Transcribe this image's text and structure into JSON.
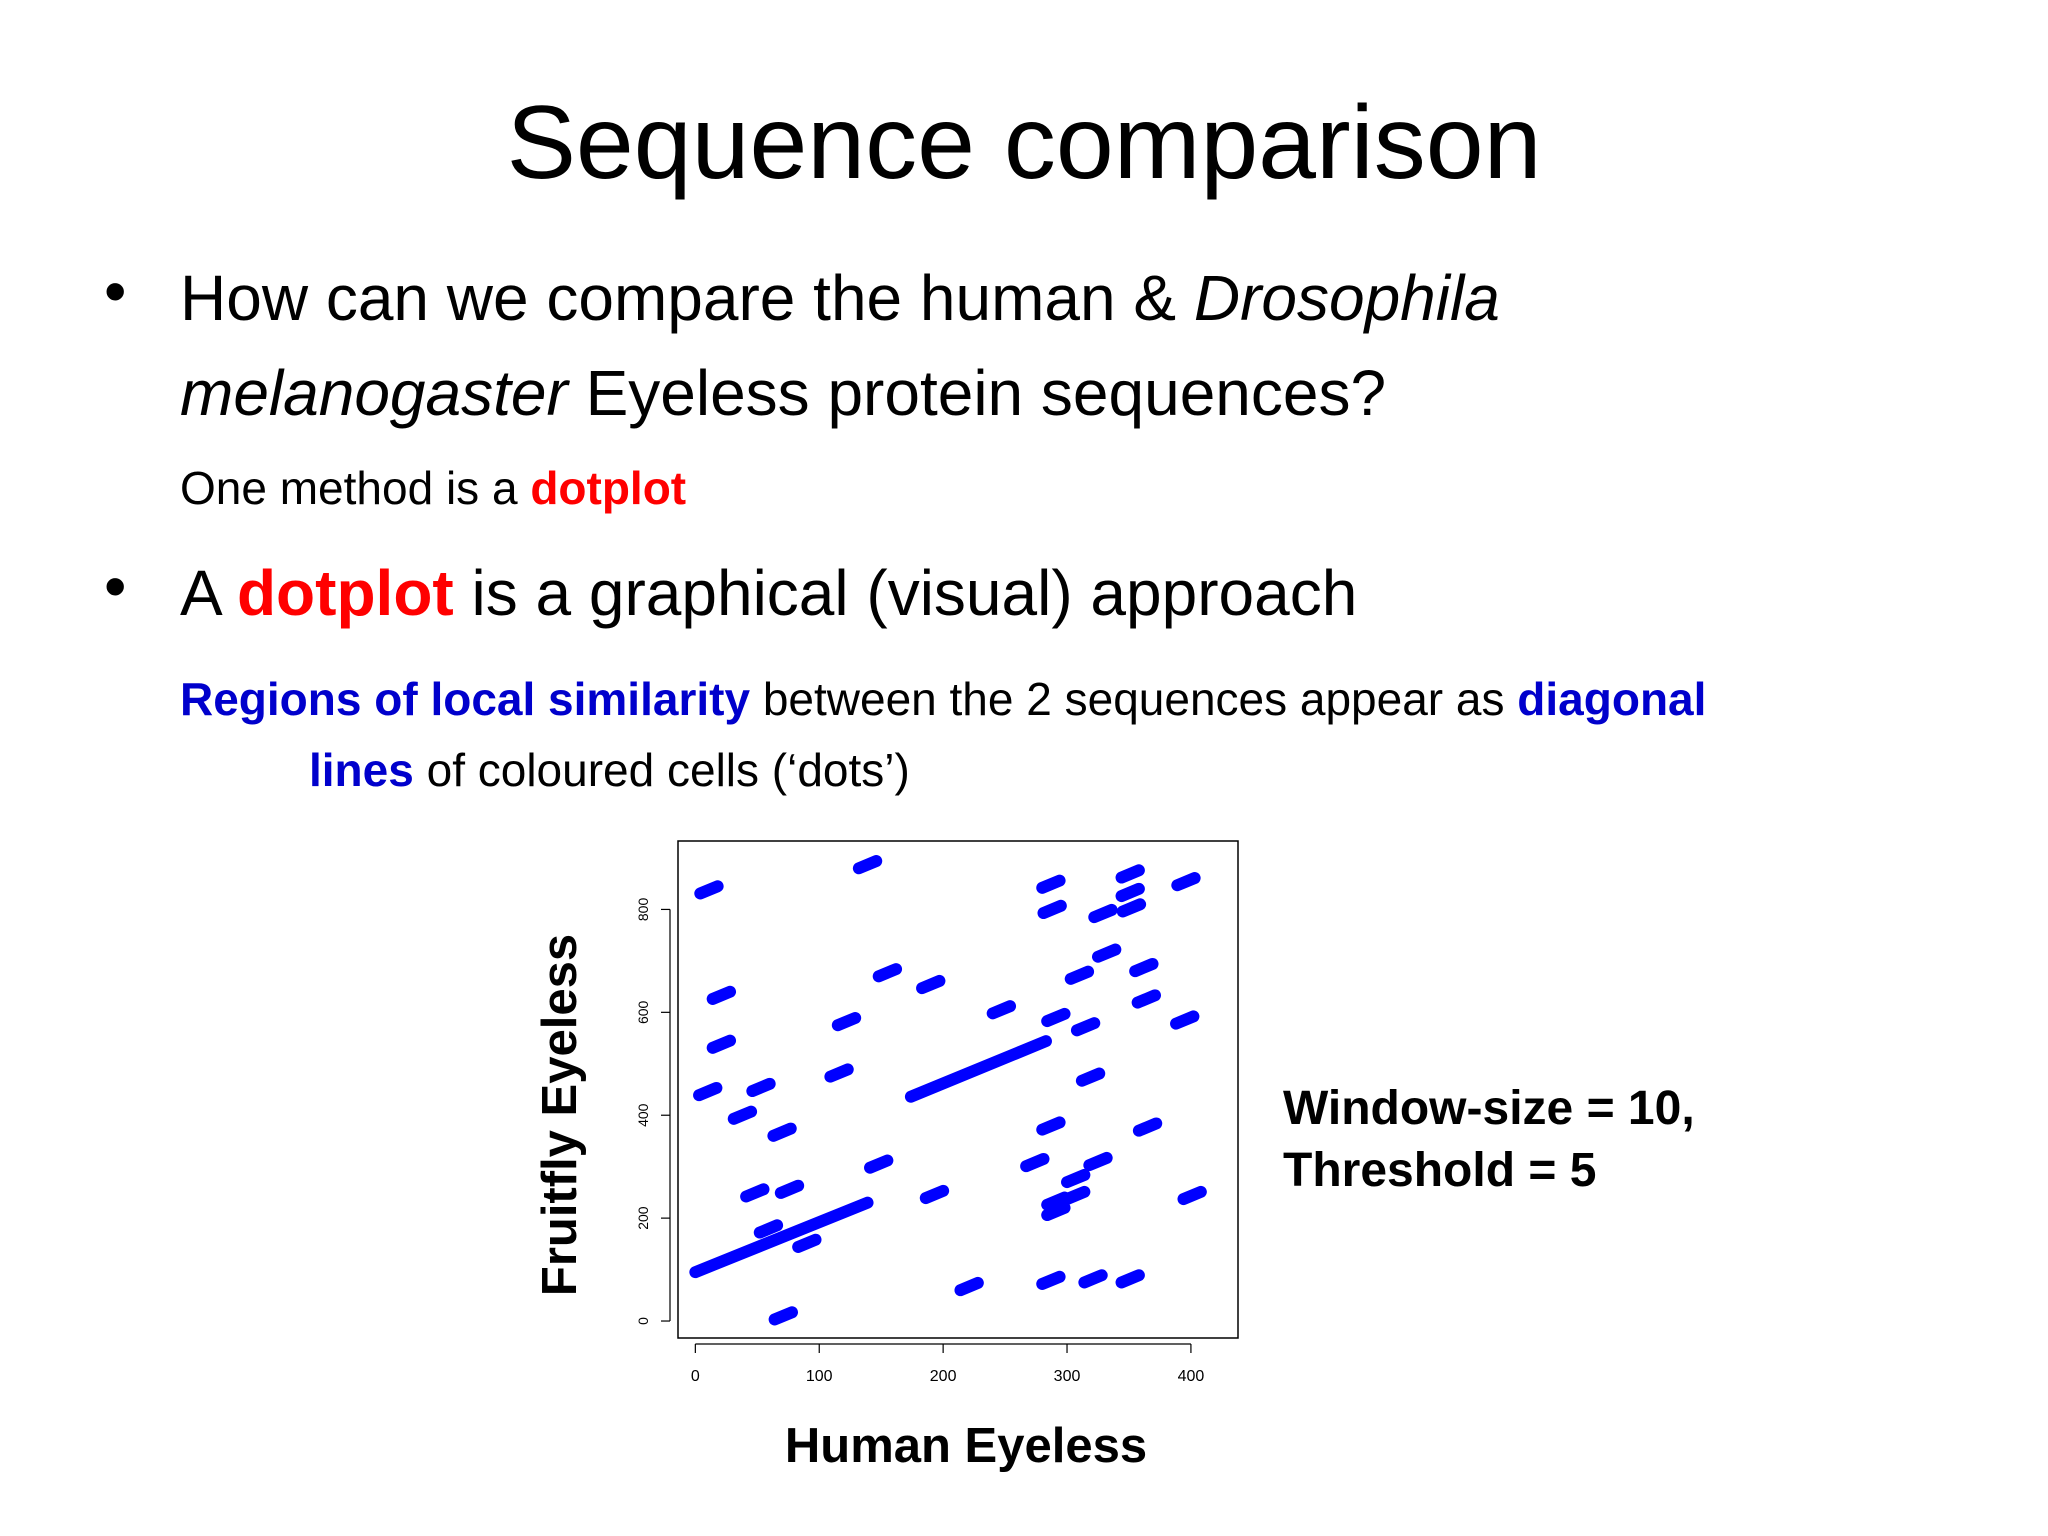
{
  "slide": {
    "title": "Sequence comparison",
    "bullet1": {
      "lines": [
        [
          "How can we compare the human & ",
          "Drosophila"
        ],
        [
          "melanogaster",
          " Eyeless protein sequences?"
        ]
      ]
    },
    "sub1": [
      "One method is a ",
      "dotplot"
    ],
    "bullet2": [
      "A ",
      "dotplot",
      " is a graphical (visual) approach"
    ],
    "sub2": {
      "lines": [
        [
          "Regions of local similarity",
          " between the 2 sequences appear as ",
          "diagonal"
        ],
        [
          "lines",
          " of coloured cells (‘dots’)"
        ]
      ]
    }
  },
  "chart_data": {
    "type": "dotplot",
    "xlabel": "Human Eyeless",
    "ylabel": "Fruitfly Eyeless",
    "annotation": [
      "Window-size = 10,",
      "Threshold = 5"
    ],
    "color": "#0000ff",
    "xlim": [
      -14,
      438
    ],
    "ylim": [
      -33,
      933
    ],
    "xticks": [
      0,
      100,
      200,
      300,
      400
    ],
    "yticks": [
      0,
      200,
      400,
      600,
      800
    ],
    "segments": [
      {
        "x": [
          0,
          139
        ],
        "y": [
          95,
          230
        ]
      },
      {
        "x": [
          174,
          283
        ],
        "y": [
          436,
          544
        ]
      },
      {
        "x": [
          4,
          18
        ],
        "y": [
          831,
          845
        ]
      },
      {
        "x": [
          132,
          146
        ],
        "y": [
          880,
          894
        ]
      },
      {
        "x": [
          14,
          28
        ],
        "y": [
          626,
          640
        ]
      },
      {
        "x": [
          14,
          28
        ],
        "y": [
          531,
          545
        ]
      },
      {
        "x": [
          3,
          17
        ],
        "y": [
          439,
          453
        ]
      },
      {
        "x": [
          46,
          60
        ],
        "y": [
          447,
          461
        ]
      },
      {
        "x": [
          31,
          45
        ],
        "y": [
          393,
          407
        ]
      },
      {
        "x": [
          63,
          77
        ],
        "y": [
          360,
          374
        ]
      },
      {
        "x": [
          69,
          83
        ],
        "y": [
          249,
          263
        ]
      },
      {
        "x": [
          41,
          55
        ],
        "y": [
          242,
          256
        ]
      },
      {
        "x": [
          52,
          66
        ],
        "y": [
          172,
          186
        ]
      },
      {
        "x": [
          83,
          97
        ],
        "y": [
          144,
          158
        ]
      },
      {
        "x": [
          64,
          78
        ],
        "y": [
          3,
          17
        ]
      },
      {
        "x": [
          115,
          129
        ],
        "y": [
          575,
          589
        ]
      },
      {
        "x": [
          109,
          123
        ],
        "y": [
          475,
          489
        ]
      },
      {
        "x": [
          148,
          162
        ],
        "y": [
          670,
          684
        ]
      },
      {
        "x": [
          183,
          197
        ],
        "y": [
          647,
          661
        ]
      },
      {
        "x": [
          141,
          155
        ],
        "y": [
          298,
          312
        ]
      },
      {
        "x": [
          186,
          200
        ],
        "y": [
          239,
          253
        ]
      },
      {
        "x": [
          214,
          228
        ],
        "y": [
          60,
          74
        ]
      },
      {
        "x": [
          240,
          254
        ],
        "y": [
          598,
          612
        ]
      },
      {
        "x": [
          280,
          294
        ],
        "y": [
          842,
          856
        ]
      },
      {
        "x": [
          281,
          295
        ],
        "y": [
          793,
          807
        ]
      },
      {
        "x": [
          284,
          298
        ],
        "y": [
          583,
          597
        ]
      },
      {
        "x": [
          280,
          294
        ],
        "y": [
          372,
          386
        ]
      },
      {
        "x": [
          267,
          281
        ],
        "y": [
          301,
          315
        ]
      },
      {
        "x": [
          284,
          298
        ],
        "y": [
          206,
          220
        ]
      },
      {
        "x": [
          280,
          294
        ],
        "y": [
          72,
          86
        ]
      },
      {
        "x": [
          314,
          328
        ],
        "y": [
          75,
          89
        ]
      },
      {
        "x": [
          303,
          317
        ],
        "y": [
          665,
          679
        ]
      },
      {
        "x": [
          325,
          339
        ],
        "y": [
          708,
          722
        ]
      },
      {
        "x": [
          308,
          322
        ],
        "y": [
          565,
          579
        ]
      },
      {
        "x": [
          312,
          326
        ],
        "y": [
          467,
          481
        ]
      },
      {
        "x": [
          322,
          336
        ],
        "y": [
          785,
          799
        ]
      },
      {
        "x": [
          344,
          358
        ],
        "y": [
          862,
          876
        ]
      },
      {
        "x": [
          345,
          359
        ],
        "y": [
          796,
          810
        ]
      },
      {
        "x": [
          344,
          358
        ],
        "y": [
          826,
          840
        ]
      },
      {
        "x": [
          344,
          358
        ],
        "y": [
          75,
          89
        ]
      },
      {
        "x": [
          355,
          369
        ],
        "y": [
          680,
          694
        ]
      },
      {
        "x": [
          357,
          371
        ],
        "y": [
          619,
          633
        ]
      },
      {
        "x": [
          358,
          372
        ],
        "y": [
          370,
          384
        ]
      },
      {
        "x": [
          318,
          332
        ],
        "y": [
          303,
          317
        ]
      },
      {
        "x": [
          300,
          314
        ],
        "y": [
          270,
          284
        ]
      },
      {
        "x": [
          300,
          314
        ],
        "y": [
          237,
          251
        ]
      },
      {
        "x": [
          284,
          298
        ],
        "y": [
          226,
          240
        ]
      },
      {
        "x": [
          389,
          403
        ],
        "y": [
          847,
          861
        ]
      },
      {
        "x": [
          388,
          402
        ],
        "y": [
          578,
          592
        ]
      },
      {
        "x": [
          394,
          408
        ],
        "y": [
          237,
          251
        ]
      }
    ]
  }
}
